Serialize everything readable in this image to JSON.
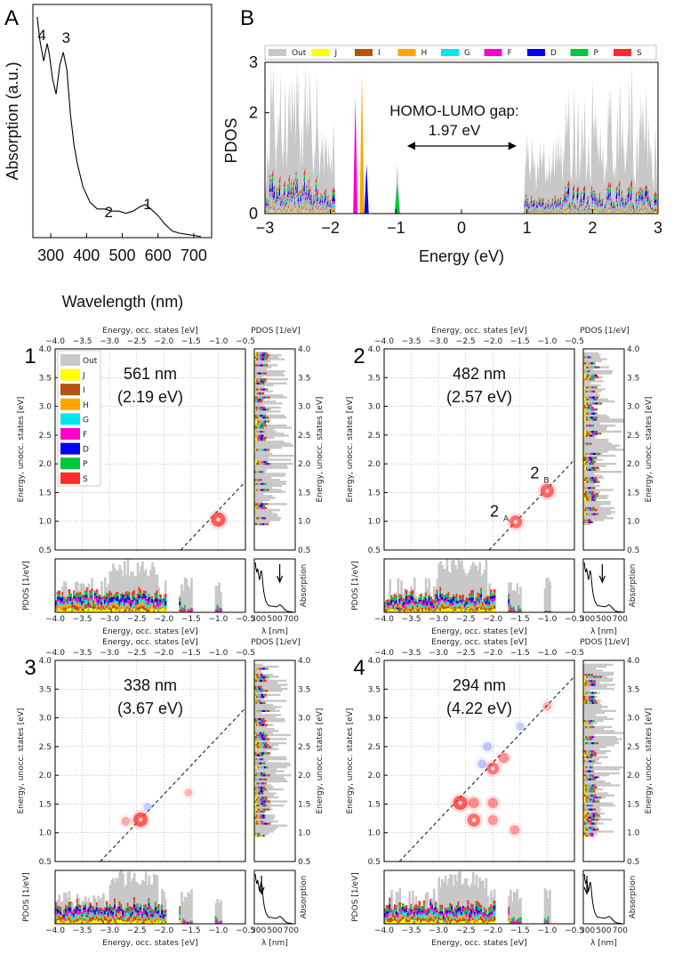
{
  "chart_data": [
    {
      "id": "A",
      "type": "line",
      "panel_label": "A",
      "xlabel": "Wavelength (nm)",
      "ylabel": "Absorption (a.u.)",
      "xlim": [
        250,
        750
      ],
      "ylim": [
        0,
        1.0
      ],
      "xticks": [
        "300",
        "400",
        "500",
        "600",
        "700"
      ],
      "x": [
        262,
        270,
        280,
        290,
        296,
        305,
        315,
        325,
        335,
        345,
        355,
        365,
        375,
        390,
        410,
        430,
        450,
        470,
        490,
        510,
        530,
        550,
        565,
        580,
        600,
        620,
        640,
        660,
        680,
        700,
        720
      ],
      "y": [
        1.0,
        0.89,
        0.8,
        0.88,
        0.83,
        0.72,
        0.65,
        0.78,
        0.84,
        0.76,
        0.56,
        0.42,
        0.33,
        0.23,
        0.16,
        0.13,
        0.13,
        0.12,
        0.12,
        0.11,
        0.12,
        0.14,
        0.15,
        0.13,
        0.1,
        0.06,
        0.03,
        0.02,
        0.015,
        0.01,
        0.005
      ],
      "annotations": [
        {
          "text": "4",
          "x": 290
        },
        {
          "text": "3",
          "x": 338
        },
        {
          "text": "2",
          "x": 482
        },
        {
          "text": "1",
          "x": 561
        }
      ]
    },
    {
      "id": "B",
      "type": "area",
      "panel_label": "B",
      "xlabel": "Energy (eV)",
      "ylabel": "PDOS",
      "xlim": [
        -3,
        3
      ],
      "ylim": [
        0,
        3
      ],
      "xticks": [
        "−3",
        "−2",
        "−1",
        "0",
        "1",
        "2",
        "3"
      ],
      "yticks": [
        "0",
        "2",
        "3"
      ],
      "legend": [
        "Out",
        "J",
        "I",
        "H",
        "G",
        "F",
        "D",
        "P",
        "S"
      ],
      "legend_colors": [
        "#c8c8c8",
        "#ffff00",
        "#b5530f",
        "#ffa500",
        "#00e5ee",
        "#ff00cc",
        "#0000ee",
        "#00c83c",
        "#ff2a2a"
      ],
      "annotation_line1": "HOMO-LUMO gap:",
      "annotation_line2": "1.97 eV",
      "homo": -0.98,
      "lumo": 0.99
    },
    {
      "id": "1",
      "type": "heatmap",
      "panel_label": "1",
      "wavelength_label": "561 nm",
      "energy_label": "(2.19 eV)",
      "excitation_energy_eV": 2.19,
      "transitions": [
        {
          "occ": -1.0,
          "unocc": 1.03,
          "weight": 1.0,
          "sign": "+"
        }
      ],
      "arrow_wavelength": 561
    },
    {
      "id": "2",
      "type": "heatmap",
      "panel_label": "2",
      "wavelength_label": "482 nm",
      "energy_label": "(2.57 eV)",
      "excitation_energy_eV": 2.57,
      "transitions": [
        {
          "occ": -1.58,
          "unocc": 0.99,
          "weight": 0.8,
          "sign": "+",
          "label": "2",
          "sub": "A"
        },
        {
          "occ": -1.0,
          "unocc": 1.53,
          "weight": 0.9,
          "sign": "+",
          "label": "2",
          "sub": "B"
        }
      ],
      "arrow_wavelength": 482
    },
    {
      "id": "3",
      "type": "heatmap",
      "panel_label": "3",
      "wavelength_label": "338 nm",
      "energy_label": "(3.67 eV)",
      "excitation_energy_eV": 3.67,
      "transitions": [
        {
          "occ": -2.43,
          "unocc": 1.23,
          "weight": 1.0,
          "sign": "+"
        },
        {
          "occ": -2.7,
          "unocc": 1.2,
          "weight": 0.25,
          "sign": "+"
        },
        {
          "occ": -2.3,
          "unocc": 1.45,
          "weight": 0.15,
          "sign": "-"
        },
        {
          "occ": -1.55,
          "unocc": 1.7,
          "weight": 0.1,
          "sign": "+"
        }
      ],
      "arrow_wavelength": 338
    },
    {
      "id": "4",
      "type": "heatmap",
      "panel_label": "4",
      "wavelength_label": "294 nm",
      "energy_label": "(4.22 eV)",
      "excitation_energy_eV": 4.22,
      "transitions": [
        {
          "occ": -2.6,
          "unocc": 1.52,
          "weight": 1.0,
          "sign": "+"
        },
        {
          "occ": -2.35,
          "unocc": 1.22,
          "weight": 0.8,
          "sign": "+"
        },
        {
          "occ": -2.35,
          "unocc": 1.52,
          "weight": 0.5,
          "sign": "+"
        },
        {
          "occ": -2.0,
          "unocc": 2.12,
          "weight": 0.7,
          "sign": "+"
        },
        {
          "occ": -1.8,
          "unocc": 2.3,
          "weight": 0.45,
          "sign": "+"
        },
        {
          "occ": -2.0,
          "unocc": 1.52,
          "weight": 0.45,
          "sign": "+"
        },
        {
          "occ": -2.0,
          "unocc": 1.22,
          "weight": 0.4,
          "sign": "+"
        },
        {
          "occ": -1.6,
          "unocc": 1.05,
          "weight": 0.35,
          "sign": "+"
        },
        {
          "occ": -2.1,
          "unocc": 2.5,
          "weight": 0.25,
          "sign": "-"
        },
        {
          "occ": -2.2,
          "unocc": 2.2,
          "weight": 0.25,
          "sign": "-"
        },
        {
          "occ": -1.0,
          "unocc": 3.2,
          "weight": 0.2,
          "sign": "+"
        },
        {
          "occ": -1.5,
          "unocc": 2.85,
          "weight": 0.15,
          "sign": "-"
        }
      ],
      "arrow_wavelength": 294
    }
  ],
  "small_panels": {
    "top_axis_label": "Energy, occ. states [eV]",
    "bottom_axis_label": "Energy, occ. states [eV]",
    "left_axis_label": "Energy, unocc. states [eV]",
    "pdos_top_label": "PDOS [1/eV]",
    "pdos_left_label": "PDOS [1/eV]",
    "absorption_label": "Absorption",
    "lambda_label": "λ [nm]",
    "occ_xlim": [
      -4.0,
      -0.5
    ],
    "occ_xticks": [
      "−4.0",
      "−3.5",
      "−3.0",
      "−2.5",
      "−2.0",
      "−1.5",
      "−1.0",
      "−0.5"
    ],
    "unocc_ylim": [
      0.5,
      4.0
    ],
    "unocc_yticks": [
      "0.5",
      "1.0",
      "1.5",
      "2.0",
      "2.5",
      "3.0",
      "3.5",
      "4.0"
    ],
    "lambda_xticks": [
      "300",
      "500",
      "700"
    ],
    "legend": [
      "Out",
      "J",
      "I",
      "H",
      "G",
      "F",
      "D",
      "P",
      "S"
    ]
  }
}
